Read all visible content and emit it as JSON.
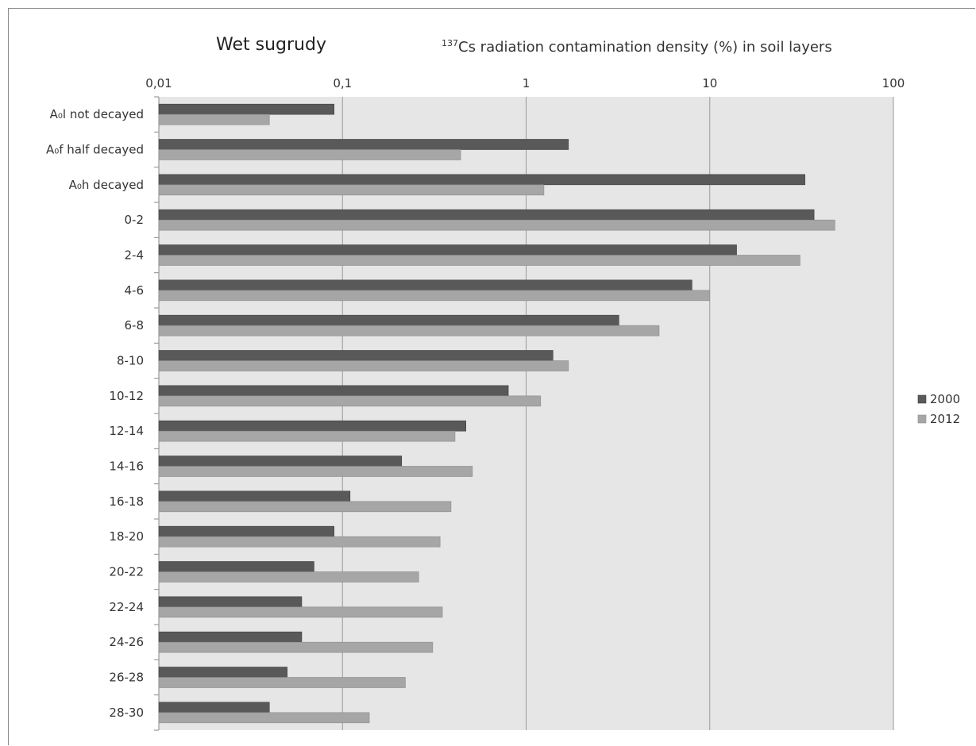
{
  "chart_data": {
    "type": "bar",
    "orientation": "horizontal",
    "title_left": "Wet sugrudy",
    "title_right_sup": "137",
    "title_right_text": "Cs radiation contamination density (%) in soil layers",
    "x_scale": "log",
    "xlim": [
      0.01,
      100
    ],
    "x_ticks": [
      0.01,
      0.1,
      1,
      10,
      100
    ],
    "x_tick_labels": [
      "0,01",
      "0,1",
      "1",
      "10",
      "100"
    ],
    "grid": true,
    "legend_position": "right",
    "categories": [
      "A₀l not decayed",
      "A₀f half decayed",
      "A₀h decayed",
      "0-2",
      "2-4",
      "4-6",
      "6-8",
      "8-10",
      "10-12",
      "12-14",
      "14-16",
      "16-18",
      "18-20",
      "20-22",
      "22-24",
      "24-26",
      "26-28",
      "28-30"
    ],
    "series": [
      {
        "name": "2000",
        "color": "#595959",
        "values": [
          0.09,
          1.7,
          33,
          37,
          14,
          8,
          3.2,
          1.4,
          0.8,
          0.47,
          0.21,
          0.11,
          0.09,
          0.07,
          0.06,
          0.06,
          0.05,
          0.04
        ]
      },
      {
        "name": "2012",
        "color": "#a6a6a6",
        "values": [
          0.04,
          0.44,
          1.25,
          48,
          31,
          10,
          5.3,
          1.7,
          1.2,
          0.41,
          0.51,
          0.39,
          0.34,
          0.26,
          0.35,
          0.31,
          0.22,
          0.14
        ]
      }
    ]
  }
}
